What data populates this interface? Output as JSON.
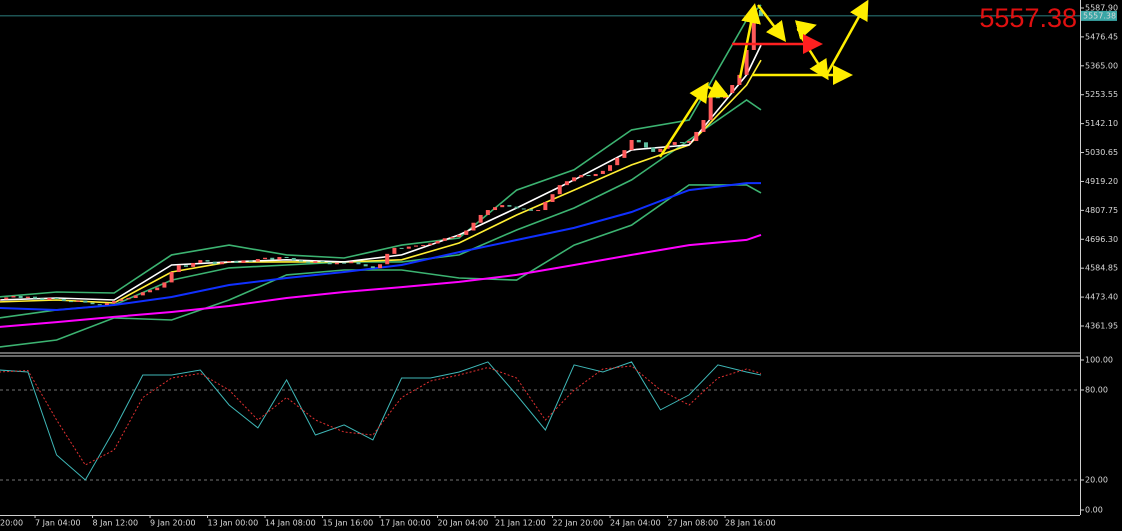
{
  "chart_data": {
    "type": "candlestick",
    "categories": [
      null,
      null,
      null,
      null,
      null,
      "7 Jan 04:00",
      null,
      null,
      null,
      null,
      null,
      null,
      null,
      "8 Jan 12:00",
      null,
      null,
      null,
      null,
      null,
      null,
      null,
      "9 Jan 20:00",
      null,
      null,
      null,
      null,
      null,
      null,
      null,
      "13 Jan 00:00",
      null,
      null,
      null,
      null,
      null,
      null,
      null,
      "14 Jan 08:00",
      null,
      null,
      null,
      null,
      null,
      null,
      null,
      "15 Jan 16:00",
      null,
      null,
      null,
      null,
      null,
      null,
      null,
      "17 Jan 00:00",
      null,
      null,
      null,
      null,
      null,
      null,
      null,
      "20 Jan 04:00",
      null,
      null,
      null,
      null,
      null,
      null,
      null,
      "21 Jan 12:00",
      null,
      null,
      null,
      null,
      null,
      null,
      null,
      "22 Jan 20:00",
      null,
      null,
      null,
      null,
      null,
      null,
      null,
      "24 Jan 04:00",
      null,
      null,
      null,
      null,
      null,
      null,
      null,
      "27 Jan 08:00",
      null,
      null,
      null,
      null,
      null,
      null,
      null,
      "28 Jan 16:00",
      null,
      null,
      null,
      null,
      null
    ],
    "left_edge_label": "20:00",
    "close": [
      4465,
      4472,
      4478,
      4470,
      4475,
      4468,
      4462,
      4470,
      4466,
      4458,
      4455,
      4460,
      4452,
      4446,
      4443,
      4450,
      4458,
      4465,
      4470,
      4480,
      4492,
      4500,
      4510,
      4530,
      4570,
      4596,
      4590,
      4605,
      4616,
      4610,
      4600,
      4608,
      4612,
      4605,
      4615,
      4610,
      4620,
      4625,
      4618,
      4628,
      4624,
      4615,
      4610,
      4605,
      4612,
      4608,
      4600,
      4606,
      4604,
      4610,
      4600,
      4592,
      4585,
      4600,
      4640,
      4663,
      4660,
      4668,
      4672,
      4674,
      4680,
      4690,
      4700,
      4705,
      4713,
      4730,
      4760,
      4790,
      4809,
      4820,
      4828,
      4822,
      4815,
      4812,
      4806,
      4809,
      4840,
      4870,
      4905,
      4920,
      4935,
      4944,
      4940,
      4948,
      4960,
      4982,
      5010,
      5040,
      5079,
      5070,
      5050,
      5033,
      5045,
      5060,
      5071,
      5068,
      5075,
      5110,
      5156,
      5252,
      5240,
      5260,
      5291,
      5330,
      5426,
      5580,
      5557.38
    ],
    "up_color": "#ff5a5a",
    "down_color": "#5fbfa0",
    "price_line_color": "#3aa6a6",
    "ylim": [
      4261.7,
      5618.7
    ],
    "yticks": [
      {
        "value": 5587.9,
        "label": "5587.90"
      },
      5476.45,
      {
        "value": 5365,
        "label": "5365.00"
      },
      5253.55,
      {
        "value": 5142.1,
        "label": "5142.10"
      },
      5030.65,
      {
        "value": 4919.2,
        "label": "4919.20"
      },
      4807.75,
      {
        "value": 4696.3,
        "label": "4696.30"
      },
      4584.85,
      {
        "value": 4473.4,
        "label": "4473.40"
      },
      4361.95
    ],
    "overlays": [
      {
        "color": "#3cb371",
        "x": [
          0,
          8,
          16,
          24,
          32,
          40,
          48,
          56,
          64,
          72,
          80,
          88,
          96,
          104,
          106
        ],
        "values": [
          4474,
          4493,
          4489,
          4636,
          4674,
          4636,
          4624,
          4674,
          4701,
          4886,
          4964,
          5118,
          5156,
          5542,
          5600
        ]
      },
      {
        "color": "#3cb371",
        "x": [
          0,
          8,
          16,
          24,
          32,
          40,
          48,
          56,
          64,
          72,
          80,
          88,
          96,
          104,
          106
        ],
        "values": [
          4393,
          4424,
          4443,
          4539,
          4586,
          4597,
          4609,
          4609,
          4636,
          4732,
          4817,
          4925,
          5079,
          5233,
          5195
        ]
      },
      {
        "color": "#3cb371",
        "x": [
          0,
          8,
          16,
          24,
          32,
          40,
          48,
          56,
          64,
          72,
          80,
          88,
          96,
          104,
          106
        ],
        "values": [
          4281,
          4308,
          4393,
          4385,
          4462,
          4559,
          4578,
          4578,
          4547,
          4539,
          4674,
          4751,
          4906,
          4906,
          4875
        ]
      },
      {
        "color": "#ff00ff",
        "x": [
          0,
          8,
          16,
          24,
          32,
          40,
          48,
          56,
          64,
          72,
          80,
          88,
          96,
          104,
          106
        ],
        "values": [
          4358,
          4377,
          4397,
          4416,
          4439,
          4470,
          4493,
          4512,
          4532,
          4559,
          4597,
          4636,
          4674,
          4694,
          4713
        ]
      },
      {
        "color": "#1030ff",
        "x": [
          0,
          8,
          16,
          24,
          32,
          40,
          48,
          56,
          64,
          72,
          80,
          88,
          96,
          104,
          106
        ],
        "values": [
          4431.4,
          4423.7,
          4443,
          4473.8,
          4520,
          4547,
          4570,
          4597,
          4647,
          4693.5,
          4740,
          4801.5,
          4886,
          4913,
          4913
        ]
      },
      {
        "color": "#ffee33",
        "x": [
          0,
          8,
          16,
          24,
          32,
          40,
          48,
          56,
          64,
          72,
          80,
          88,
          96,
          104,
          106
        ],
        "values": [
          4455,
          4462,
          4451,
          4570,
          4609,
          4609,
          4609,
          4617,
          4682,
          4790,
          4886,
          4983,
          5060,
          5291,
          5387
        ]
      },
      {
        "color": "#ffffff",
        "x": [
          0,
          8,
          16,
          24,
          32,
          40,
          48,
          56,
          64,
          72,
          80,
          88,
          96,
          104,
          106
        ],
        "values": [
          4462,
          4470,
          4462,
          4597,
          4609,
          4617,
          4609,
          4636,
          4713,
          4817,
          4925,
          5041,
          5060,
          5330,
          5445
        ]
      }
    ],
    "oscillator": {
      "type": "line",
      "ylim": [
        -3.33,
        103.33
      ],
      "yticks": [
        {
          "value": 100,
          "label": "100.00"
        },
        {
          "value": 80,
          "label": "80.00"
        },
        {
          "value": 20,
          "label": "20.00"
        },
        {
          "value": 0,
          "label": "0.00"
        }
      ],
      "x": [
        0,
        4,
        8,
        12,
        16,
        20,
        24,
        28,
        32,
        36,
        40,
        44,
        48,
        52,
        56,
        60,
        64,
        68,
        72,
        76,
        80,
        84,
        88,
        92,
        96,
        100,
        104,
        106
      ],
      "series": [
        {
          "color": "#3fb8b8",
          "values": [
            93.3,
            92,
            36.7,
            20,
            53.3,
            90,
            90,
            93.3,
            70,
            54.7,
            86.7,
            50,
            56.7,
            46.7,
            88,
            88,
            92,
            98.7,
            76.7,
            53.3,
            96.7,
            92,
            98.7,
            66.7,
            76.7,
            96.7,
            92,
            90
          ]
        },
        {
          "color": "#e03030",
          "dashed": true,
          "values": [
            92,
            93,
            60,
            30,
            40,
            75,
            88,
            91,
            80,
            60,
            75,
            60,
            52,
            50,
            75,
            86,
            90,
            95,
            88,
            60,
            80,
            94,
            96,
            80,
            70,
            88,
            94,
            91
          ]
        }
      ]
    }
  }
}
